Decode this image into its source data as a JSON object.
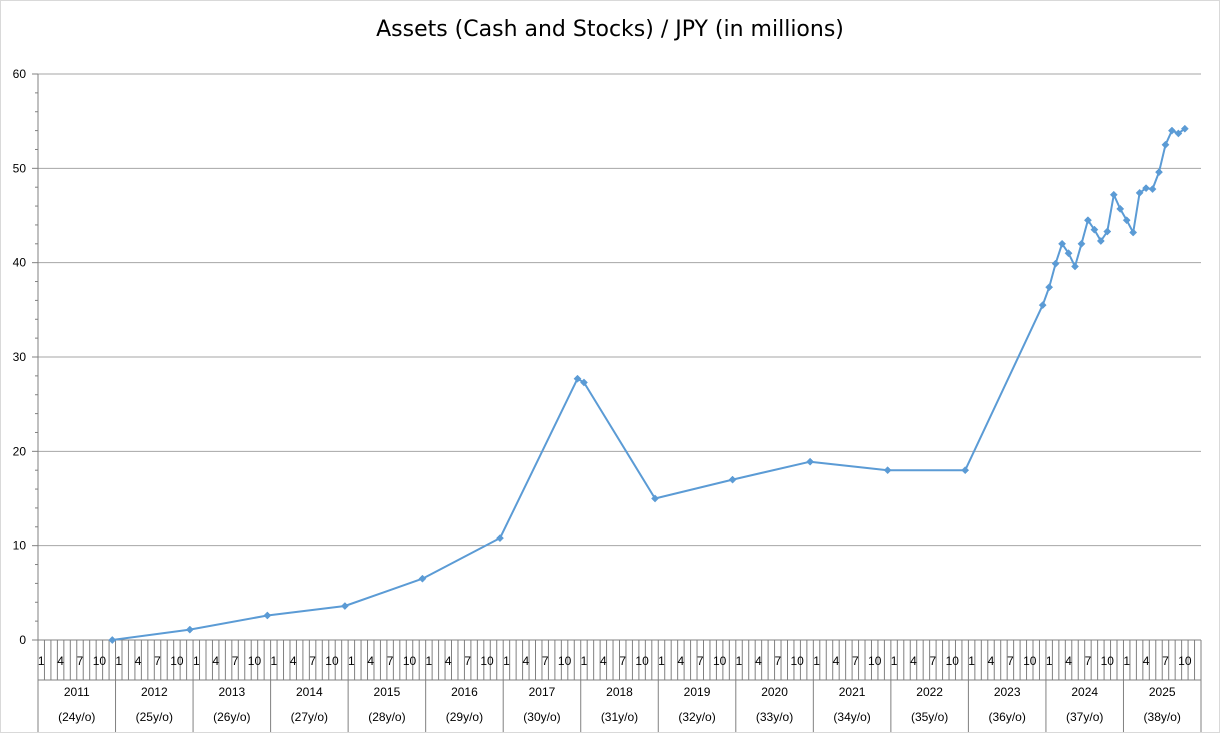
{
  "chart_data": {
    "type": "line",
    "title": "Assets (Cash and Stocks) / JPY (in millions)",
    "xlabel": "",
    "ylabel": "",
    "ylim": [
      0,
      60
    ],
    "y_ticks": [
      "0",
      "10",
      "20",
      "30",
      "40",
      "50",
      "60"
    ],
    "grid": "horizontal",
    "legend": "none",
    "month_labels": [
      "1",
      "4",
      "7",
      "10"
    ],
    "years": [
      {
        "year": "2011",
        "age": "(24y/o)"
      },
      {
        "year": "2012",
        "age": "(25y/o)"
      },
      {
        "year": "2013",
        "age": "(26y/o)"
      },
      {
        "year": "2014",
        "age": "(27y/o)"
      },
      {
        "year": "2015",
        "age": "(28y/o)"
      },
      {
        "year": "2016",
        "age": "(29y/o)"
      },
      {
        "year": "2017",
        "age": "(30y/o)"
      },
      {
        "year": "2018",
        "age": "(31y/o)"
      },
      {
        "year": "2019",
        "age": "(32y/o)"
      },
      {
        "year": "2020",
        "age": "(33y/o)"
      },
      {
        "year": "2021",
        "age": "(34y/o)"
      },
      {
        "year": "2022",
        "age": "(35y/o)"
      },
      {
        "year": "2023",
        "age": "(36y/o)"
      },
      {
        "year": "2024",
        "age": "(37y/o)"
      },
      {
        "year": "2025",
        "age": "(38y/o)"
      }
    ],
    "series": [
      {
        "color": "#5b9bd5",
        "points": [
          {
            "date": "2011-12",
            "value": 0.0
          },
          {
            "date": "2012-12",
            "value": 1.1
          },
          {
            "date": "2013-12",
            "value": 2.6
          },
          {
            "date": "2014-12",
            "value": 3.6
          },
          {
            "date": "2015-12",
            "value": 6.5
          },
          {
            "date": "2016-12",
            "value": 10.8
          },
          {
            "date": "2017-12",
            "value": 27.7
          },
          {
            "date": "2018-01",
            "value": 27.3
          },
          {
            "date": "2018-12",
            "value": 15.0
          },
          {
            "date": "2019-12",
            "value": 17.0
          },
          {
            "date": "2020-12",
            "value": 18.9
          },
          {
            "date": "2021-12",
            "value": 18.0
          },
          {
            "date": "2022-12",
            "value": 18.0
          },
          {
            "date": "2023-12",
            "value": 35.5
          },
          {
            "date": "2024-01",
            "value": 37.4
          },
          {
            "date": "2024-02",
            "value": 39.9
          },
          {
            "date": "2024-03",
            "value": 42.0
          },
          {
            "date": "2024-04",
            "value": 41.0
          },
          {
            "date": "2024-05",
            "value": 39.6
          },
          {
            "date": "2024-06",
            "value": 42.0
          },
          {
            "date": "2024-07",
            "value": 44.5
          },
          {
            "date": "2024-08",
            "value": 43.5
          },
          {
            "date": "2024-09",
            "value": 42.3
          },
          {
            "date": "2024-10",
            "value": 43.3
          },
          {
            "date": "2024-11",
            "value": 47.2
          },
          {
            "date": "2024-12",
            "value": 45.7
          },
          {
            "date": "2025-01",
            "value": 44.5
          },
          {
            "date": "2025-02",
            "value": 43.2
          },
          {
            "date": "2025-03",
            "value": 47.4
          },
          {
            "date": "2025-04",
            "value": 47.9
          },
          {
            "date": "2025-05",
            "value": 47.8
          },
          {
            "date": "2025-06",
            "value": 49.6
          },
          {
            "date": "2025-07",
            "value": 52.5
          },
          {
            "date": "2025-08",
            "value": 54.0
          },
          {
            "date": "2025-09",
            "value": 53.7
          },
          {
            "date": "2025-10",
            "value": 54.2
          }
        ]
      }
    ]
  }
}
